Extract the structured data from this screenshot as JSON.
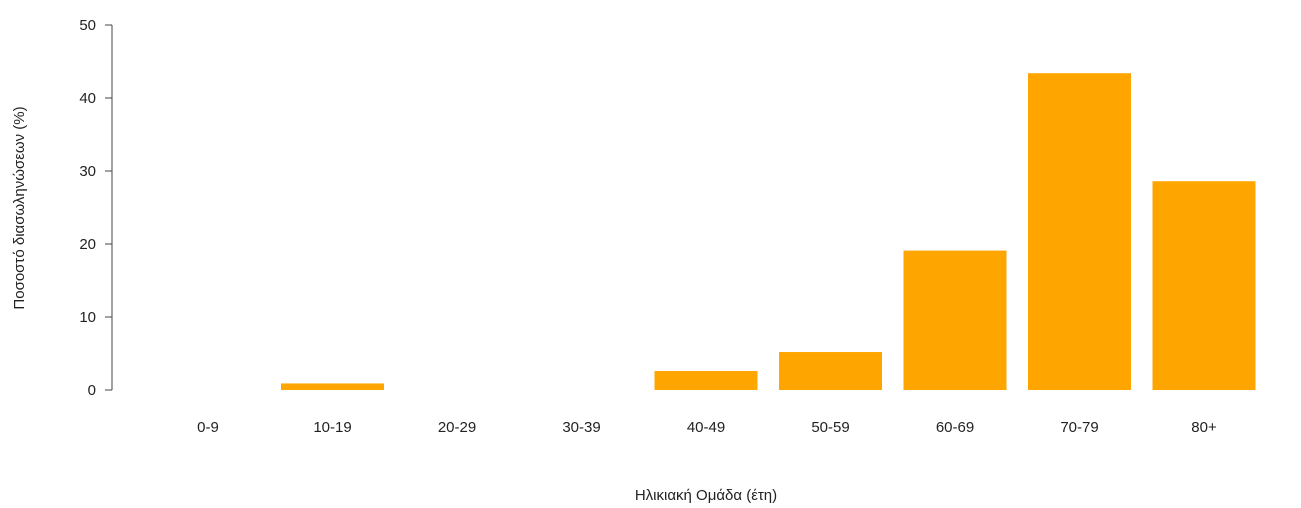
{
  "chart_data": {
    "type": "bar",
    "categories": [
      "0-9",
      "10-19",
      "20-29",
      "30-39",
      "40-49",
      "50-59",
      "60-69",
      "70-79",
      "80+"
    ],
    "values": [
      0,
      0.9,
      0,
      0,
      2.6,
      5.2,
      19.1,
      43.4,
      28.6
    ],
    "xlabel": "Ηλικιακή Ομάδα (έτη)",
    "ylabel": "Ποσοστό διασωληνώσεων (%)",
    "ylim": [
      0,
      50
    ],
    "yticks": [
      0,
      10,
      20,
      30,
      40,
      50
    ],
    "grid": false,
    "legend": "none",
    "bar_color": "#FFA500"
  }
}
